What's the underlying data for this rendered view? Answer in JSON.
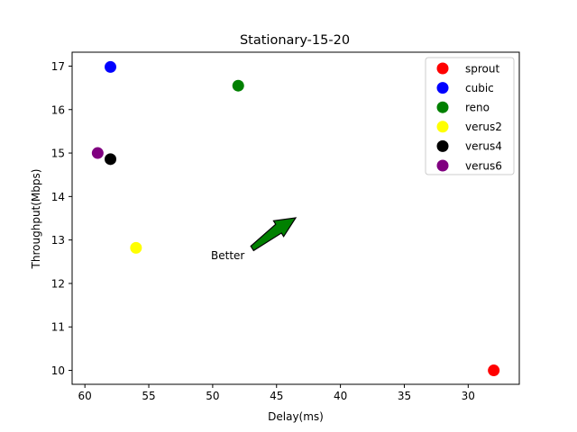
{
  "chart_data": {
    "type": "scatter",
    "title": "Stationary-15-20",
    "xlabel": "Delay(ms)",
    "ylabel": "Throughput(Mbps)",
    "x_inverted": true,
    "xlim": [
      61,
      26
    ],
    "ylim": [
      9.68,
      17.32
    ],
    "xticks": [
      60,
      55,
      50,
      45,
      40,
      35,
      30
    ],
    "yticks": [
      10,
      11,
      12,
      13,
      14,
      15,
      16,
      17
    ],
    "grid": false,
    "legend_position": "top-right",
    "series": [
      {
        "name": "sprout",
        "color": "#ff0000",
        "points": [
          {
            "x": 28,
            "y": 10.0
          }
        ]
      },
      {
        "name": "cubic",
        "color": "#0000ff",
        "points": [
          {
            "x": 58,
            "y": 16.98
          }
        ]
      },
      {
        "name": "reno",
        "color": "#008000",
        "points": [
          {
            "x": 48,
            "y": 16.55
          }
        ]
      },
      {
        "name": "verus2",
        "color": "#ffff00",
        "points": [
          {
            "x": 56,
            "y": 12.82
          }
        ]
      },
      {
        "name": "verus4",
        "color": "#000000",
        "points": [
          {
            "x": 58,
            "y": 14.86
          }
        ]
      },
      {
        "name": "verus6",
        "color": "#800080",
        "points": [
          {
            "x": 59,
            "y": 15.0
          }
        ]
      }
    ],
    "annotation": {
      "text": "Better",
      "arrow_color": "#008000"
    }
  }
}
